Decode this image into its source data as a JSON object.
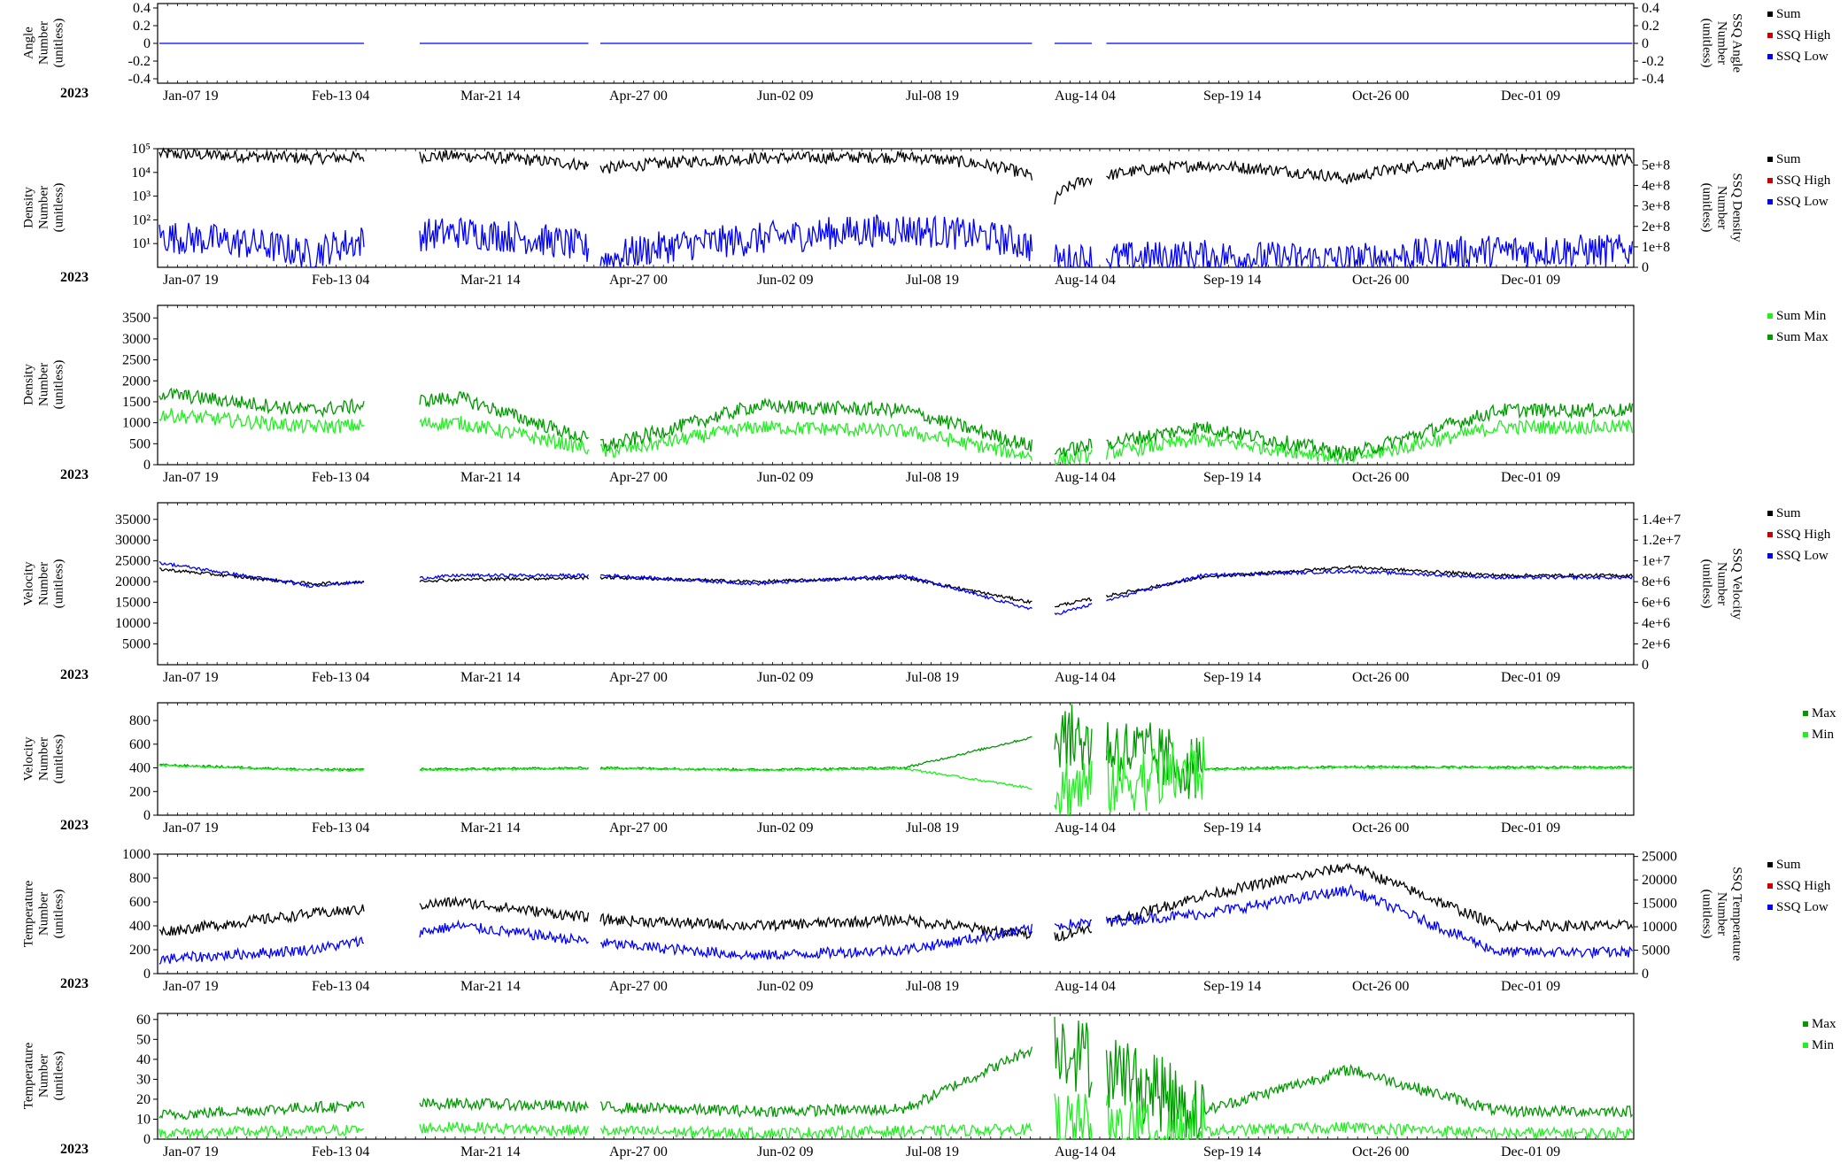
{
  "year": "2023",
  "x_ticks": [
    "Jan-07 19",
    "Feb-13 04",
    "Mar-21 14",
    "Apr-27 00",
    "Jun-02 09",
    "Jul-08 19",
    "Aug-14 04",
    "Sep-19 14",
    "Oct-26 00",
    "Dec-01 09"
  ],
  "colors": {
    "black": "#000000",
    "red": "#cc0000",
    "blue": "#0000ff",
    "green": "#00cc00",
    "dark_green": "#009900",
    "light_green": "#22ee22"
  },
  "panels": [
    {
      "id": "angle",
      "ylabel": [
        "Angle",
        "Number",
        "(unitless)"
      ],
      "right_ylabel": [
        "SSQ Angle",
        "Number",
        "(unitless)"
      ],
      "yticks": [
        "0.4",
        "0.2",
        "0",
        "-0.2",
        "-0.4"
      ],
      "right_yticks": [
        "0.4",
        "0.2",
        "0",
        "-0.2",
        "-0.4"
      ],
      "legend": [
        {
          "label": "Sum",
          "color": "#000000"
        },
        {
          "label": "SSQ High",
          "color": "#cc0000"
        },
        {
          "label": "SSQ Low",
          "color": "#0000ff"
        }
      ]
    },
    {
      "id": "density-ssq",
      "ylabel": [
        "Density",
        "Number",
        "(unitless)"
      ],
      "right_ylabel": [
        "SSQ Density",
        "Number",
        "(unitless)"
      ],
      "yticks": [
        "10⁵",
        "10⁴",
        "10³",
        "10²",
        "10¹"
      ],
      "right_yticks": [
        "5e+8",
        "4e+8",
        "3e+8",
        "2e+8",
        "1e+8",
        "0"
      ],
      "legend": [
        {
          "label": "Sum",
          "color": "#000000"
        },
        {
          "label": "SSQ High",
          "color": "#cc0000"
        },
        {
          "label": "SSQ Low",
          "color": "#0000ff"
        }
      ]
    },
    {
      "id": "density-minmax",
      "ylabel": [
        "Density",
        "Number",
        "(unitless)"
      ],
      "right_ylabel": [],
      "yticks": [
        "3500",
        "3000",
        "2500",
        "2000",
        "1500",
        "1000",
        "500",
        "0"
      ],
      "right_yticks": [],
      "legend": [
        {
          "label": "Sum Min",
          "color": "#22ee22"
        },
        {
          "label": "Sum Max",
          "color": "#009900"
        }
      ]
    },
    {
      "id": "velocity-ssq",
      "ylabel": [
        "Velocity",
        "Number",
        "(unitless)"
      ],
      "right_ylabel": [
        "SSQ Velocity",
        "Number",
        "(unitless)"
      ],
      "yticks": [
        "35000",
        "30000",
        "25000",
        "20000",
        "15000",
        "10000",
        "5000"
      ],
      "right_yticks": [
        "1.4e+7",
        "1.2e+7",
        "1e+7",
        "8e+6",
        "6e+6",
        "4e+6",
        "2e+6",
        "0"
      ],
      "legend": [
        {
          "label": "Sum",
          "color": "#000000"
        },
        {
          "label": "SSQ High",
          "color": "#cc0000"
        },
        {
          "label": "SSQ Low",
          "color": "#0000ff"
        }
      ]
    },
    {
      "id": "velocity-minmax",
      "ylabel": [
        "Velocity",
        "Number",
        "(unitless)"
      ],
      "right_ylabel": [],
      "yticks": [
        "800",
        "600",
        "400",
        "200",
        "0"
      ],
      "right_yticks": [],
      "legend": [
        {
          "label": "Max",
          "color": "#009900"
        },
        {
          "label": "Min",
          "color": "#22ee22"
        }
      ]
    },
    {
      "id": "temperature-ssq",
      "ylabel": [
        "Temperature",
        "Number",
        "(unitless)"
      ],
      "right_ylabel": [
        "SSQ Temperature",
        "Number",
        "(unitless)"
      ],
      "yticks": [
        "1000",
        "800",
        "600",
        "400",
        "200",
        "0"
      ],
      "right_yticks": [
        "25000",
        "20000",
        "15000",
        "10000",
        "5000",
        "0"
      ],
      "legend": [
        {
          "label": "Sum",
          "color": "#000000"
        },
        {
          "label": "SSQ High",
          "color": "#cc0000"
        },
        {
          "label": "SSQ Low",
          "color": "#0000ff"
        }
      ]
    },
    {
      "id": "temperature-minmax",
      "ylabel": [
        "Temperature",
        "Number",
        "(unitless)"
      ],
      "right_ylabel": [],
      "yticks": [
        "60",
        "50",
        "40",
        "30",
        "20",
        "10",
        "0"
      ],
      "right_yticks": [],
      "legend": [
        {
          "label": "Max",
          "color": "#009900"
        },
        {
          "label": "Min",
          "color": "#22ee22"
        }
      ]
    }
  ],
  "chart_data": [
    {
      "type": "line",
      "x": [
        "Jan-07 19",
        "Feb-13 04",
        "Mar-21 14",
        "Apr-27 00",
        "Jun-02 09",
        "Jul-08 19",
        "Aug-14 04",
        "Sep-19 14",
        "Oct-26 00",
        "Dec-01 09"
      ],
      "ylim": [
        -0.45,
        0.45
      ],
      "right_ylim": [
        -0.45,
        0.45
      ],
      "series": [
        {
          "name": "SSQ Low",
          "axis": "left",
          "values": [
            0,
            0,
            0,
            0,
            0,
            0,
            0,
            0,
            0,
            0
          ]
        }
      ]
    },
    {
      "type": "line",
      "x": [
        "Jan-07 19",
        "Feb-13 04",
        "Mar-21 14",
        "Apr-27 00",
        "Jun-02 09",
        "Jul-08 19",
        "Aug-14 04",
        "Sep-19 14",
        "Oct-26 00",
        "Dec-01 09"
      ],
      "ylim": [
        1,
        100000
      ],
      "yscale": "log",
      "right_ylim": [
        0,
        580000000
      ],
      "series": [
        {
          "name": "Sum",
          "axis": "left",
          "values": [
            60000,
            40000,
            50000,
            15000,
            40000,
            45000,
            300,
            20000,
            5000,
            35000
          ]
        },
        {
          "name": "SSQ Low",
          "axis": "left",
          "values": [
            20,
            3,
            30,
            2,
            15,
            40,
            2,
            3,
            2,
            5
          ]
        }
      ]
    },
    {
      "type": "line",
      "x": [
        "Jan-07 19",
        "Feb-13 04",
        "Mar-21 14",
        "Apr-27 00",
        "Jun-02 09",
        "Jul-08 19",
        "Aug-14 04",
        "Sep-19 14",
        "Oct-26 00",
        "Dec-01 09"
      ],
      "ylim": [
        0,
        3800
      ],
      "series": [
        {
          "name": "Sum Min",
          "values": [
            1200,
            900,
            1000,
            300,
            900,
            800,
            100,
            600,
            150,
            900
          ]
        },
        {
          "name": "Sum Max",
          "values": [
            1700,
            1300,
            1600,
            450,
            1400,
            1300,
            300,
            900,
            250,
            1300
          ]
        }
      ]
    },
    {
      "type": "line",
      "x": [
        "Jan-07 19",
        "Feb-13 04",
        "Mar-21 14",
        "Apr-27 00",
        "Jun-02 09",
        "Jul-08 19",
        "Aug-14 04",
        "Sep-19 14",
        "Oct-26 00",
        "Dec-01 09"
      ],
      "ylim": [
        0,
        39000
      ],
      "right_ylim": [
        0,
        15600000
      ],
      "series": [
        {
          "name": "Sum",
          "axis": "left",
          "values": [
            23000,
            19500,
            20500,
            21000,
            20000,
            21000,
            14000,
            21000,
            23500,
            21500
          ]
        },
        {
          "name": "SSQ Low",
          "axis": "left",
          "values": [
            24500,
            19000,
            21500,
            21500,
            19500,
            21500,
            12000,
            21500,
            22500,
            21000
          ]
        }
      ]
    },
    {
      "type": "line",
      "x": [
        "Jan-07 19",
        "Feb-13 04",
        "Mar-21 14",
        "Apr-27 00",
        "Jun-02 09",
        "Jul-08 19",
        "Aug-14 04",
        "Sep-19 14",
        "Oct-26 00",
        "Dec-01 09"
      ],
      "ylim": [
        0,
        950
      ],
      "series": [
        {
          "name": "Max",
          "values": [
            425,
            385,
            390,
            400,
            385,
            400,
            700,
            390,
            410,
            405
          ]
        },
        {
          "name": "Min",
          "values": [
            420,
            380,
            385,
            395,
            380,
            395,
            200,
            385,
            405,
            400
          ]
        }
      ]
    },
    {
      "type": "line",
      "x": [
        "Jan-07 19",
        "Feb-13 04",
        "Mar-21 14",
        "Apr-27 00",
        "Jun-02 09",
        "Jul-08 19",
        "Aug-14 04",
        "Sep-19 14",
        "Oct-26 00",
        "Dec-01 09"
      ],
      "ylim": [
        0,
        1000
      ],
      "right_ylim": [
        0,
        25500
      ],
      "series": [
        {
          "name": "Sum",
          "axis": "left",
          "values": [
            350,
            500,
            600,
            450,
            400,
            450,
            300,
            650,
            900,
            400
          ]
        },
        {
          "name": "SSQ Low",
          "axis": "left",
          "values": [
            120,
            200,
            400,
            250,
            150,
            200,
            400,
            500,
            700,
            180
          ]
        }
      ]
    },
    {
      "type": "line",
      "x": [
        "Jan-07 19",
        "Feb-13 04",
        "Mar-21 14",
        "Apr-27 00",
        "Jun-02 09",
        "Jul-08 19",
        "Aug-14 04",
        "Sep-19 14",
        "Oct-26 00",
        "Dec-01 09"
      ],
      "ylim": [
        0,
        63
      ],
      "series": [
        {
          "name": "Max",
          "values": [
            12,
            16,
            18,
            16,
            14,
            15,
            50,
            14,
            35,
            14
          ]
        },
        {
          "name": "Min",
          "values": [
            3,
            4,
            6,
            4,
            3,
            4,
            5,
            4,
            6,
            3
          ]
        }
      ]
    }
  ]
}
